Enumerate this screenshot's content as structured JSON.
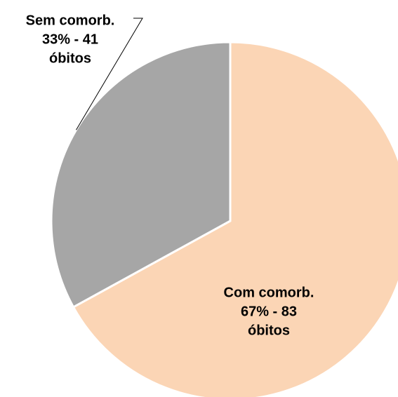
{
  "chart_data": {
    "type": "pie",
    "categories": [
      "Com comorb.",
      "Sem comorb."
    ],
    "values": [
      67,
      33
    ],
    "value_labels": [
      [
        "Com comorb.",
        "67% - 83",
        "óbitos"
      ],
      [
        "Sem comorb.",
        "33% - 41",
        "óbitos"
      ]
    ],
    "colors": [
      "#fbd5b5",
      "#a6a6a6"
    ]
  }
}
